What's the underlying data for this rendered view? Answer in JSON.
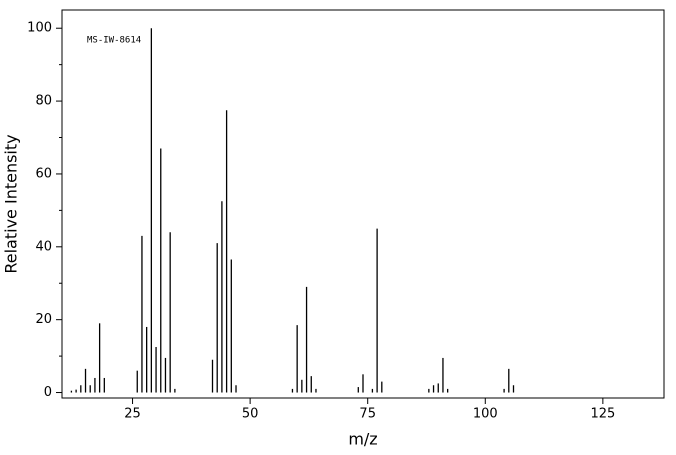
{
  "chart_data": {
    "type": "bar",
    "annotation": "MS-IW-8614",
    "xlabel": "m/z",
    "ylabel": "Relative Intensity",
    "x": [
      12,
      13,
      14,
      15,
      16,
      17,
      18,
      19,
      26,
      27,
      28,
      29,
      30,
      31,
      32,
      33,
      34,
      42,
      43,
      44,
      45,
      46,
      47,
      59,
      60,
      61,
      62,
      63,
      64,
      73,
      74,
      76,
      77,
      78,
      88,
      89,
      90,
      91,
      92,
      104,
      105,
      106
    ],
    "values": [
      0.5,
      0.8,
      2,
      6.5,
      2,
      4,
      19,
      4,
      6,
      43,
      18,
      100,
      12.5,
      67,
      9.5,
      44,
      1,
      9,
      41,
      52.5,
      77.5,
      36.5,
      2,
      1,
      18.5,
      3.5,
      29,
      4.5,
      1,
      1.5,
      5,
      1,
      45,
      3,
      1,
      2,
      2.5,
      9.5,
      1,
      1,
      6.5,
      2
    ],
    "color": "#000000",
    "xlim": [
      10,
      138
    ],
    "xticks": [
      25,
      50,
      75,
      100,
      125
    ],
    "ylim": [
      -1.5,
      105
    ],
    "yticks": [
      0,
      20,
      40,
      60,
      80,
      100
    ],
    "yminorticks": [
      10,
      30,
      50,
      70,
      90
    ]
  }
}
